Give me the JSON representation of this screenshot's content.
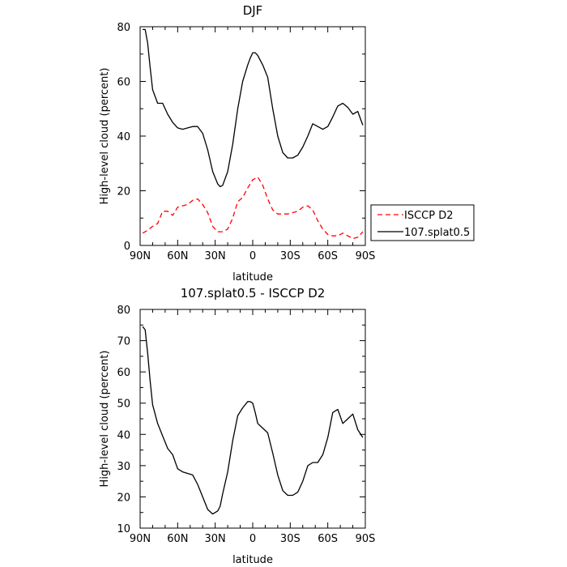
{
  "chart_data": [
    {
      "type": "line",
      "title": "DJF",
      "xlabel": "latitude",
      "ylabel": "High-level cloud (percent)",
      "xlim": [
        90,
        -90
      ],
      "ylim": [
        0,
        80
      ],
      "x_ticks": [
        90,
        60,
        30,
        0,
        -30,
        -60,
        -90
      ],
      "x_tick_labels": [
        "90N",
        "60N",
        "30N",
        "0",
        "30S",
        "60S",
        "90S"
      ],
      "y_ticks": [
        0,
        20,
        40,
        60,
        80
      ],
      "y_tick_labels": [
        "0",
        "20",
        "40",
        "60",
        "80"
      ],
      "legend_position": "right",
      "series": [
        {
          "name": "ISCCP D2",
          "color": "#ff0000",
          "style": "dashed",
          "x": [
            88,
            84,
            80,
            76,
            72,
            68,
            64,
            60,
            56,
            52,
            48,
            44,
            40,
            36,
            32,
            28,
            24,
            20,
            16,
            12,
            8,
            4,
            0,
            -4,
            -8,
            -12,
            -16,
            -20,
            -24,
            -28,
            -32,
            -36,
            -40,
            -44,
            -48,
            -52,
            -56,
            -60,
            -64,
            -68,
            -72,
            -76,
            -80,
            -84,
            -88
          ],
          "values": [
            4.5,
            5.5,
            7,
            8,
            12.5,
            12.5,
            11,
            14,
            14.5,
            15,
            16.5,
            17,
            15,
            12,
            7,
            5,
            5,
            6,
            10,
            16,
            17.5,
            21,
            24,
            25,
            22,
            17,
            13,
            11.5,
            11.5,
            11.5,
            12,
            12.5,
            14,
            14.5,
            13,
            9,
            6,
            4,
            3.5,
            3.5,
            4.5,
            3.5,
            2.5,
            3,
            5
          ]
        },
        {
          "name": "107.splat0.5",
          "color": "#000000",
          "style": "solid",
          "x": [
            88,
            86,
            84,
            82,
            80,
            76,
            72,
            68,
            64,
            60,
            56,
            52,
            48,
            44,
            40,
            36,
            32,
            28,
            26,
            24,
            20,
            16,
            12,
            8,
            4,
            2,
            0,
            -2,
            -4,
            -8,
            -12,
            -16,
            -20,
            -24,
            -28,
            -32,
            -36,
            -40,
            -44,
            -48,
            -52,
            -56,
            -60,
            -64,
            -68,
            -72,
            -76,
            -80,
            -84,
            -88
          ],
          "values": [
            79,
            79,
            74,
            65,
            57,
            52,
            52,
            48,
            45,
            43,
            42.5,
            43,
            43.5,
            43.5,
            41,
            35,
            27,
            22.5,
            21.5,
            22,
            27,
            37,
            50,
            60,
            66,
            68.5,
            70.5,
            70.5,
            69.5,
            66,
            61.5,
            50,
            40,
            34,
            32,
            32,
            33,
            36,
            40,
            44.5,
            43.5,
            42.5,
            43.5,
            47,
            51,
            52,
            50.5,
            48,
            49,
            44
          ]
        }
      ]
    },
    {
      "type": "line",
      "title": "107.splat0.5 - ISCCP D2",
      "xlabel": "latitude",
      "ylabel": "High-level cloud (percent)",
      "xlim": [
        90,
        -90
      ],
      "ylim": [
        10,
        80
      ],
      "x_ticks": [
        90,
        60,
        30,
        0,
        -30,
        -60,
        -90
      ],
      "x_tick_labels": [
        "90N",
        "60N",
        "30N",
        "0",
        "30S",
        "60S",
        "90S"
      ],
      "y_ticks": [
        10,
        20,
        30,
        40,
        50,
        60,
        70,
        80
      ],
      "y_tick_labels": [
        "10",
        "20",
        "30",
        "40",
        "50",
        "60",
        "70",
        "80"
      ],
      "series": [
        {
          "name": "",
          "color": "#000000",
          "style": "solid",
          "x": [
            88,
            86,
            84,
            82,
            80,
            76,
            72,
            68,
            64,
            60,
            56,
            52,
            48,
            44,
            40,
            36,
            32,
            28,
            26,
            24,
            20,
            16,
            12,
            8,
            4,
            2,
            0,
            -2,
            -4,
            -8,
            -12,
            -16,
            -20,
            -24,
            -28,
            -32,
            -36,
            -40,
            -44,
            -48,
            -52,
            -56,
            -60,
            -64,
            -68,
            -72,
            -76,
            -80,
            -84,
            -88
          ],
          "values": [
            74.5,
            73.5,
            66,
            57,
            49.5,
            43.5,
            39.5,
            35.5,
            33.5,
            29,
            28,
            27.5,
            27,
            24,
            20,
            16,
            14.5,
            15.5,
            17,
            21,
            28,
            38,
            46,
            48.5,
            50.5,
            50.5,
            50,
            47,
            43.5,
            42,
            40.5,
            34,
            27,
            22,
            20.5,
            20.5,
            21.5,
            25,
            30,
            31,
            31,
            33.5,
            39,
            47,
            48,
            43.5,
            45,
            46.5,
            41.5,
            39
          ]
        }
      ]
    }
  ]
}
